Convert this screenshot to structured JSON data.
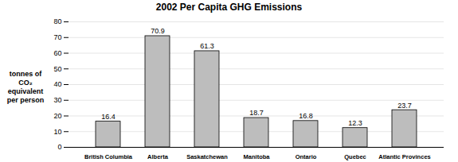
{
  "chart_data": {
    "type": "bar",
    "title": "2002 Per Capita GHG Emissions",
    "y_label": "tonnes of CO₂ equivalent per person",
    "categories": [
      "British Columbia",
      "Alberta",
      "Saskatchewan",
      "Manitoba",
      "Ontario",
      "Quebec",
      "Atlantic Provinces"
    ],
    "values": [
      16.4,
      70.9,
      61.3,
      18.7,
      16.8,
      12.3,
      23.7
    ],
    "color": "#bdbdbd",
    "ylim": [
      0,
      80
    ],
    "yticks": [
      0,
      10,
      20,
      30,
      40,
      50,
      60,
      70,
      80
    ],
    "grid": true,
    "data_labels": true
  }
}
